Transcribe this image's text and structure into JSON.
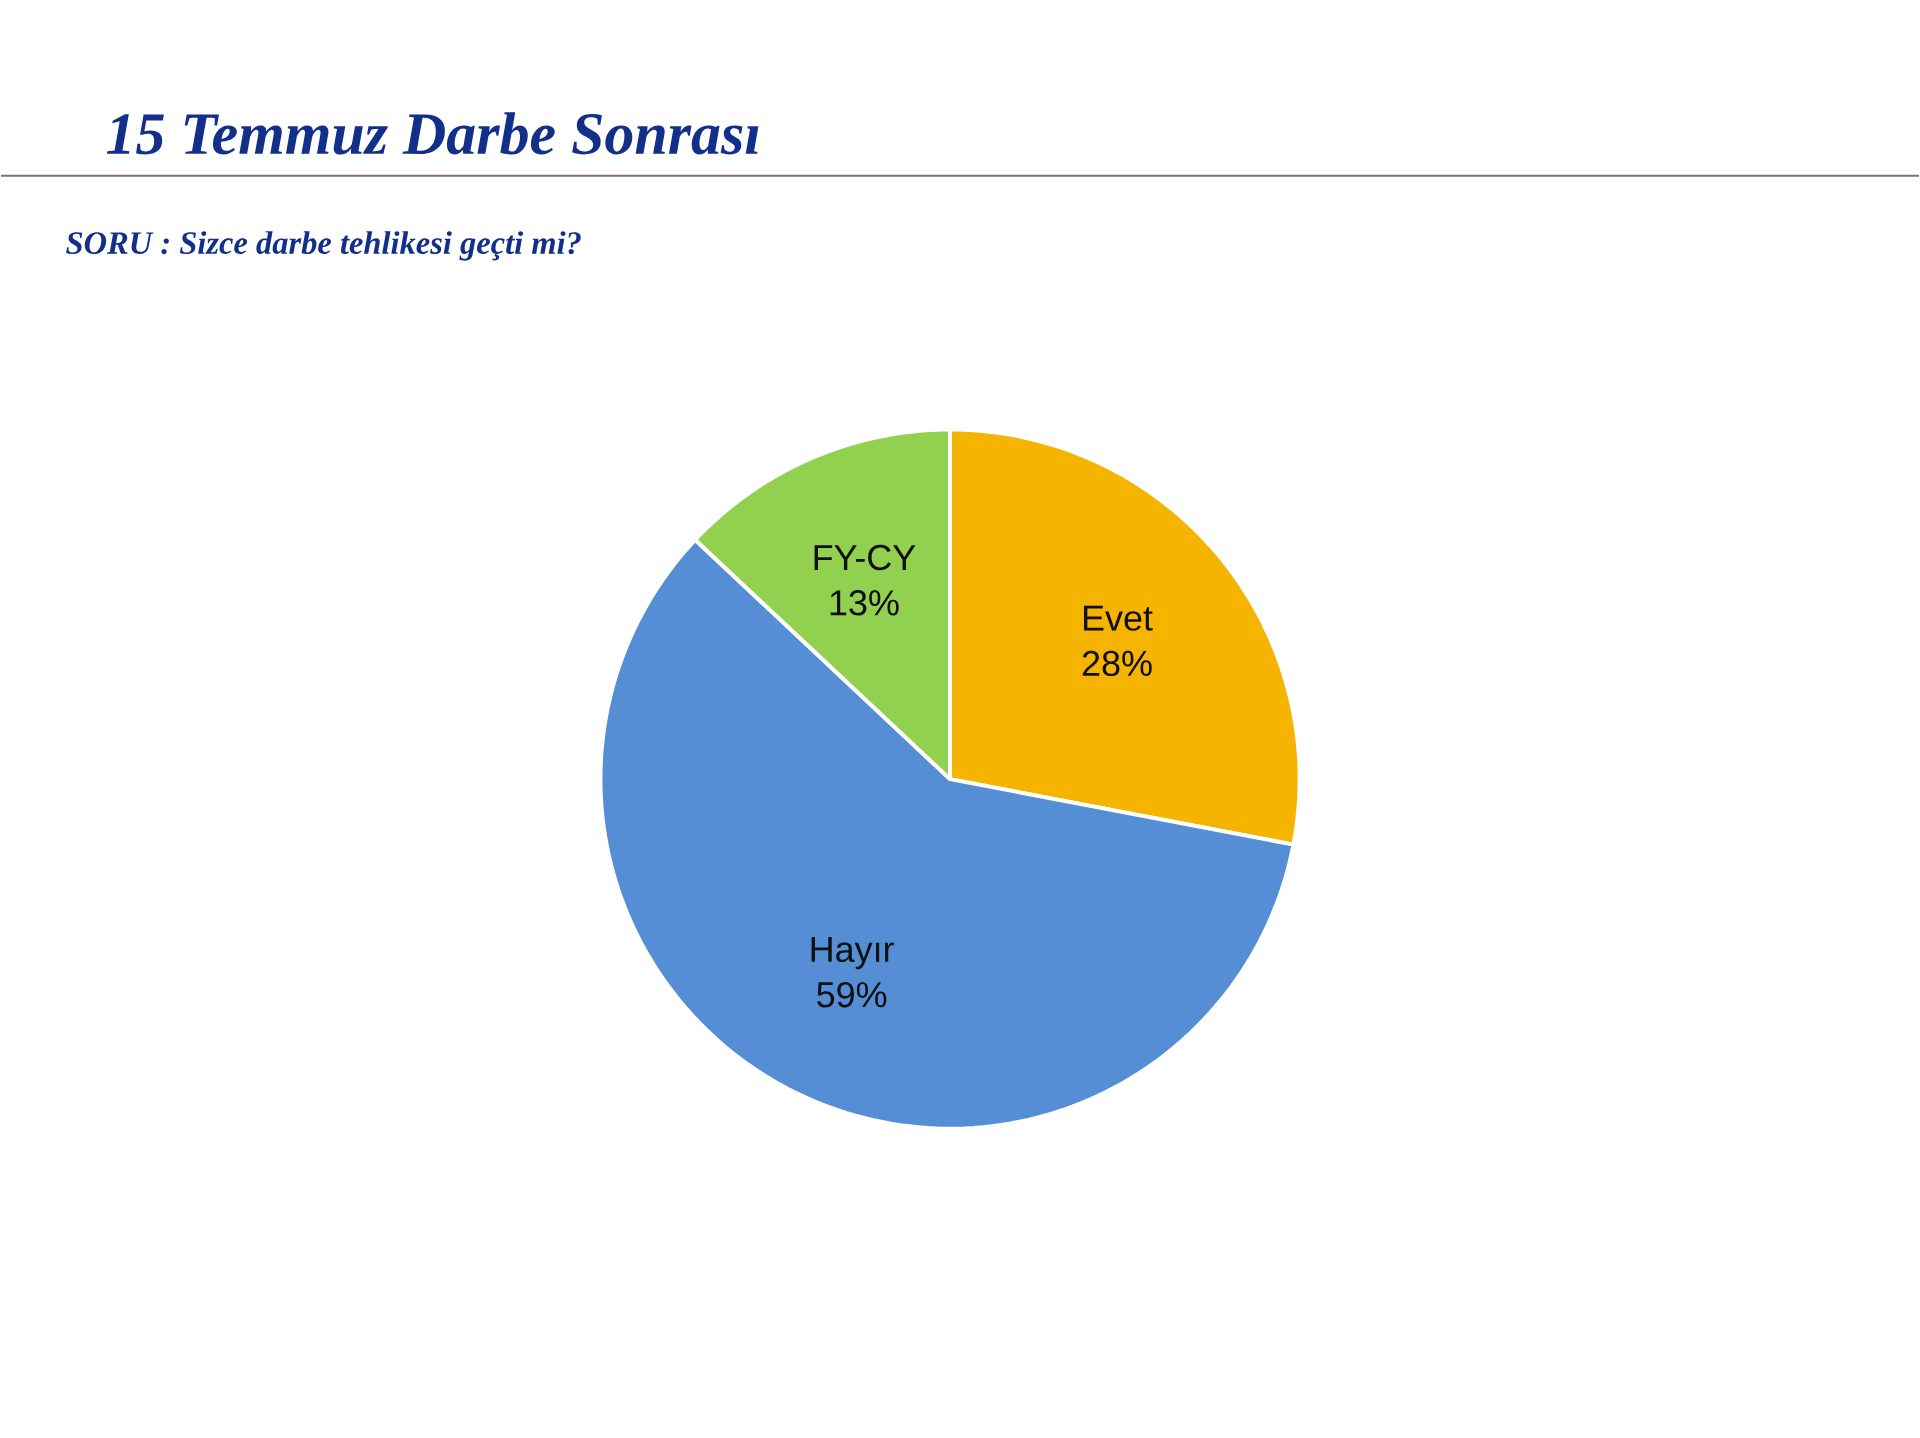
{
  "chart_data": {
    "type": "pie",
    "title": "15 Temmuz Darbe Sonrası",
    "subtitle": "SORU : Sizce darbe tehlikesi geçti mi?",
    "categories": [
      "Evet",
      "Hayır",
      "FY-CY"
    ],
    "values": [
      28,
      59,
      13
    ],
    "colors": [
      "#f5b400",
      "#558ed5",
      "#92d050"
    ],
    "value_labels": [
      "28%",
      "59%",
      "13%"
    ]
  }
}
